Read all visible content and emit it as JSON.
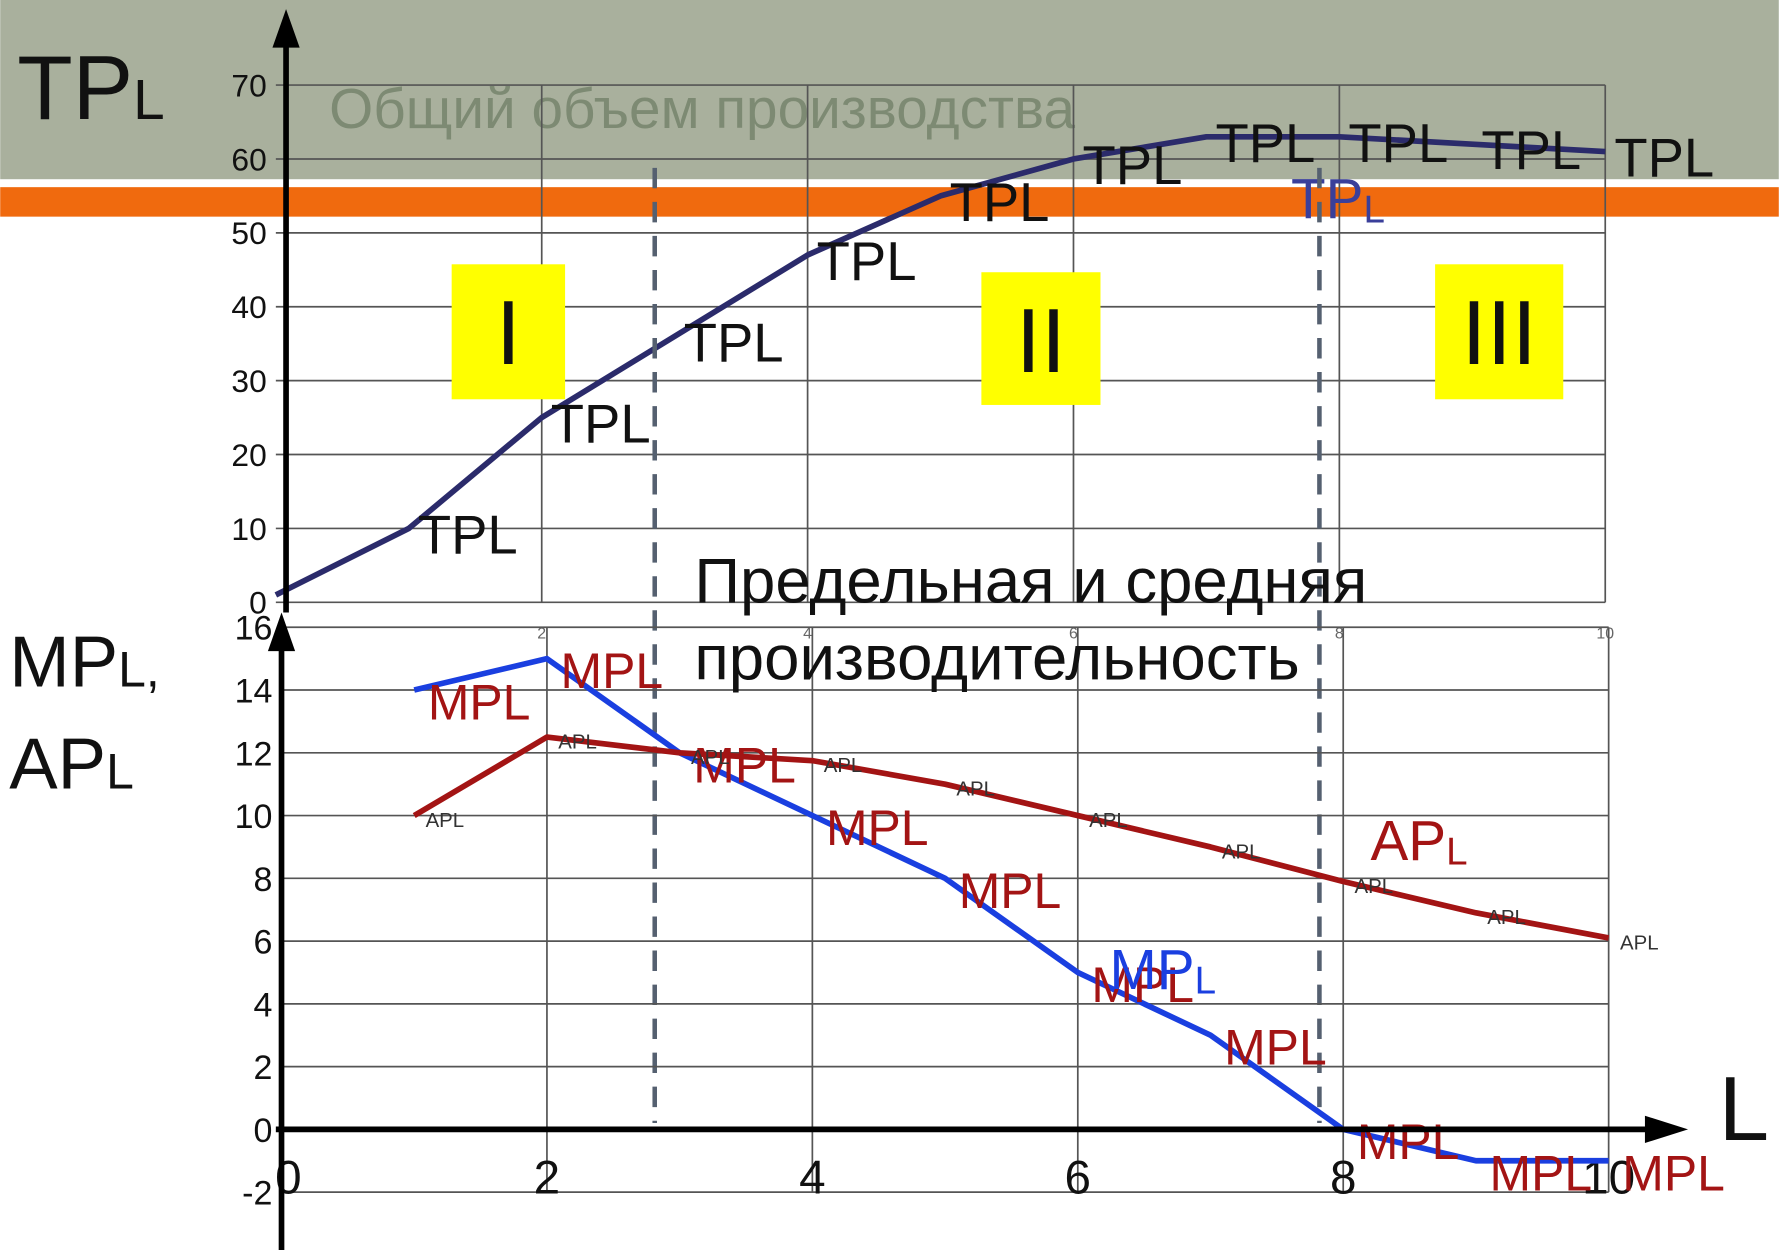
{
  "header": {
    "title": "Общий объем производства"
  },
  "chart_data": [
    {
      "type": "line",
      "y_label": "TP",
      "y_label_sub": "L",
      "x": [
        0,
        1,
        2,
        3,
        4,
        5,
        6,
        7,
        8,
        9,
        10
      ],
      "series": [
        {
          "name": "TPL",
          "color": "#2b2b6b",
          "values": [
            1,
            10,
            25,
            36,
            47,
            55,
            60,
            63,
            63,
            62,
            61
          ]
        }
      ],
      "curve_label": "TP",
      "curve_label_sub": "L",
      "stage_labels": [
        "I",
        "II",
        "III"
      ],
      "stage_bounds": [
        2.85,
        7.85
      ],
      "xlim": [
        0,
        10
      ],
      "ylim": [
        0,
        70
      ],
      "xticks": [
        2,
        4,
        6,
        8,
        10
      ],
      "yticks": [
        0,
        10,
        20,
        30,
        40,
        50,
        60,
        70
      ],
      "grid": true
    },
    {
      "type": "line",
      "title": "Предельная и средняя производительность",
      "y_label_lines": [
        [
          "MP",
          "L",
          ","
        ],
        [
          "AP",
          "L"
        ]
      ],
      "x_label": "L",
      "x": [
        0,
        1,
        2,
        3,
        4,
        5,
        6,
        7,
        8,
        9,
        10
      ],
      "series": [
        {
          "name": "MPL",
          "color": "#1a3fe0",
          "values": [
            null,
            14,
            15,
            12,
            10,
            8,
            5,
            3,
            0,
            -1,
            -1
          ],
          "curve_label": "MP",
          "curve_label_sub": "L"
        },
        {
          "name": "APL",
          "color": "#a31414",
          "values": [
            null,
            10,
            12.5,
            12,
            11.75,
            11,
            10,
            9,
            7.9,
            6.9,
            6.1
          ],
          "curve_label": "AP",
          "curve_label_sub": "L"
        }
      ],
      "xlim": [
        0,
        10
      ],
      "ylim": [
        -2,
        16
      ],
      "xticks": [
        0,
        2,
        4,
        6,
        8,
        10
      ],
      "yticks": [
        -2,
        0,
        2,
        4,
        6,
        8,
        10,
        12,
        14,
        16
      ],
      "grid": true
    }
  ]
}
